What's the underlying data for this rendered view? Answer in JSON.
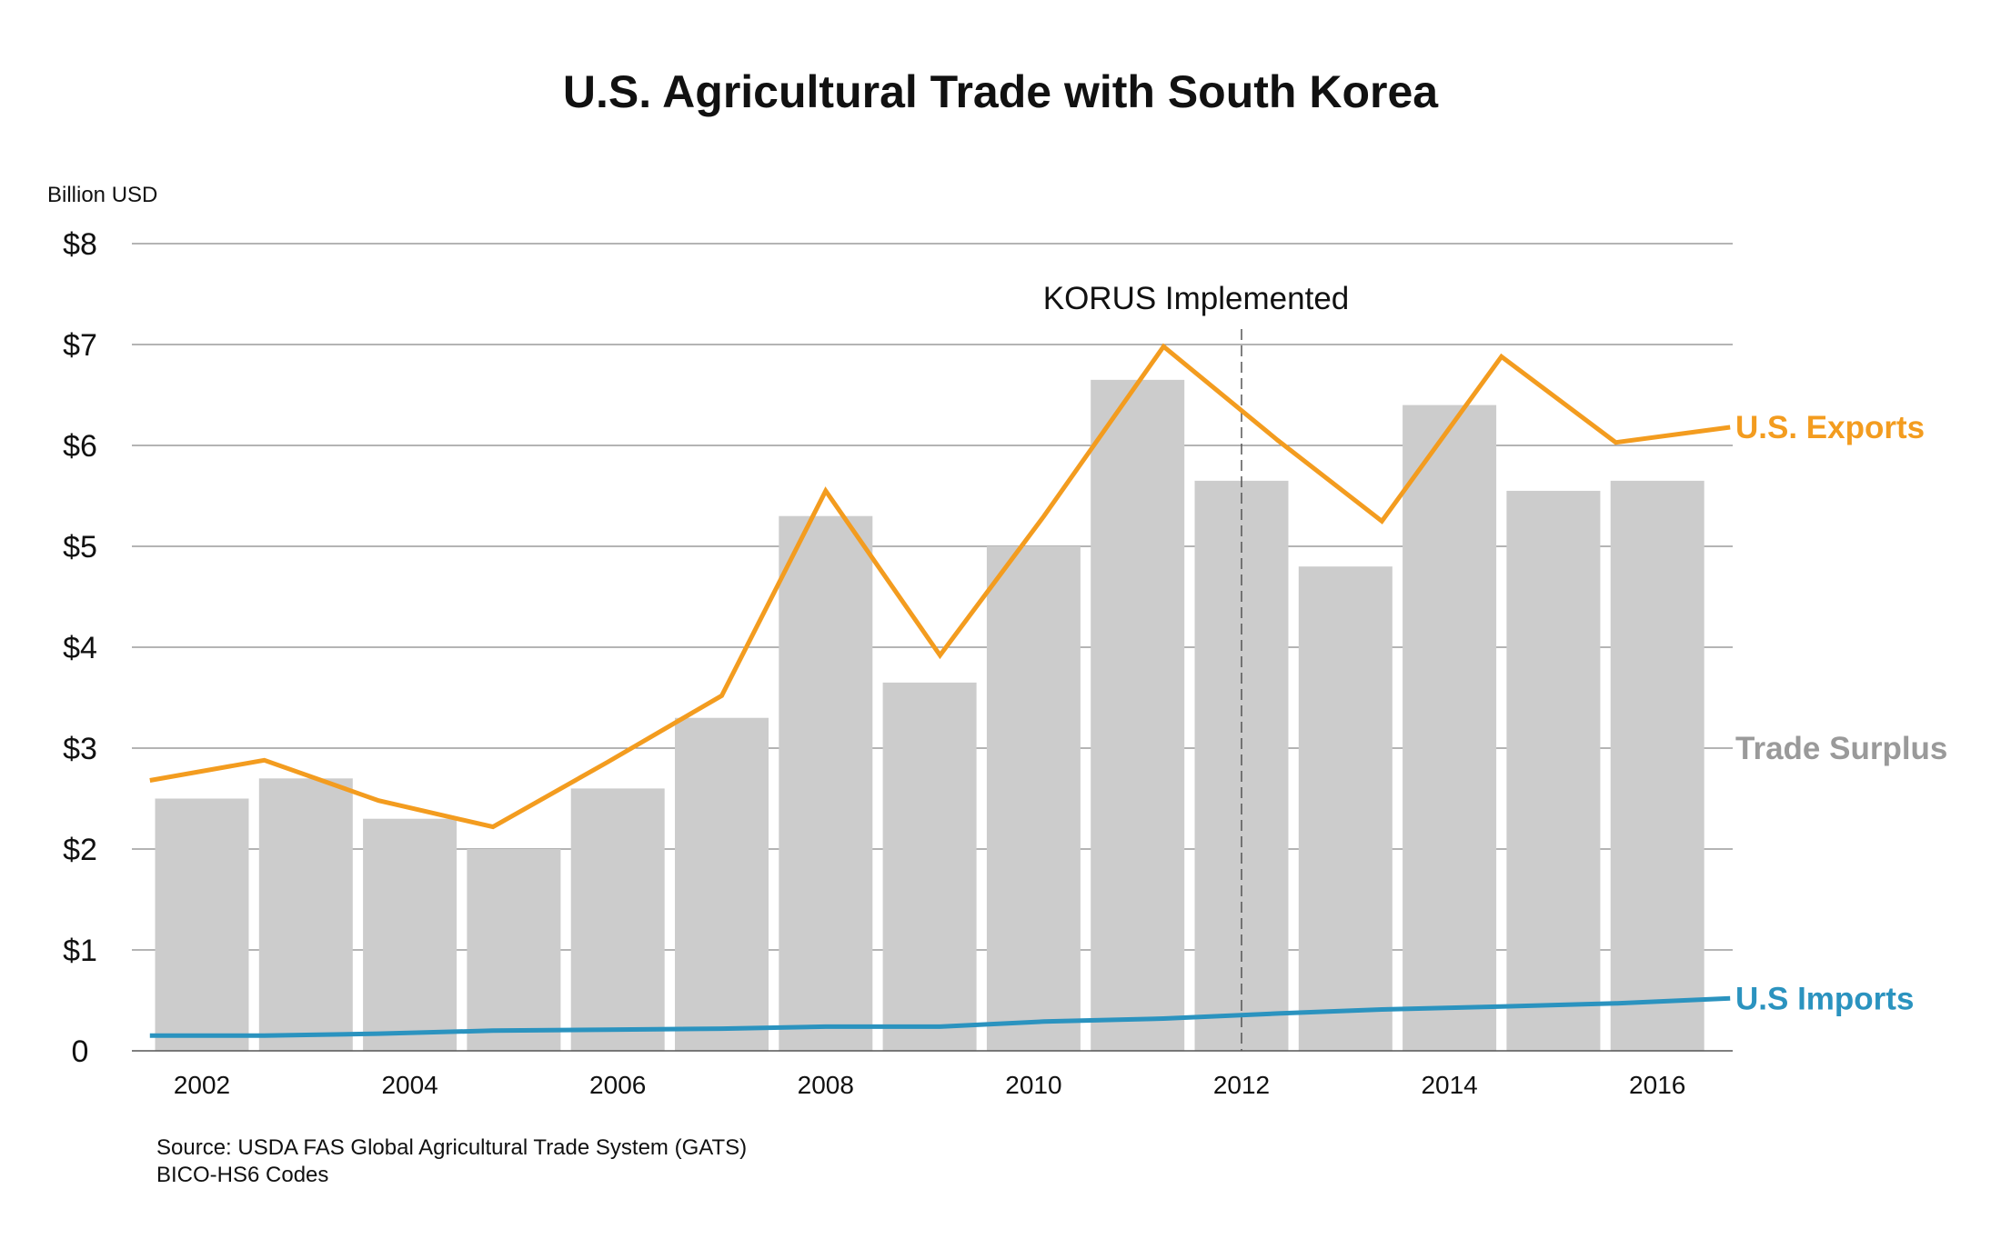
{
  "chart_data": {
    "type": "bar",
    "title": "U.S. Agricultural Trade with South Korea",
    "ylabel": "Billion USD",
    "ylim": [
      0,
      8
    ],
    "y_ticks": [
      "0",
      "$1",
      "$2",
      "$3",
      "$4",
      "$5",
      "$6",
      "$7",
      "$8"
    ],
    "x_tick_labels": [
      "2002",
      "2004",
      "2006",
      "2008",
      "2010",
      "2012",
      "2014",
      "2016"
    ],
    "categories": [
      "2002",
      "2003",
      "2004",
      "2005",
      "2006",
      "2007",
      "2008",
      "2009",
      "2010",
      "2011",
      "2012",
      "2013",
      "2014",
      "2015",
      "2016"
    ],
    "grid": true,
    "series": [
      {
        "name": "Trade Surplus",
        "kind": "bar",
        "color": "#cccccc",
        "values": [
          2.5,
          2.7,
          2.3,
          2.0,
          2.6,
          3.3,
          5.3,
          3.65,
          5.0,
          6.65,
          5.65,
          4.8,
          6.4,
          5.55,
          5.65
        ]
      },
      {
        "name": "U.S. Exports",
        "kind": "line",
        "color": "#f39c1f",
        "x": [
          2001.5,
          2002.6,
          2003.7,
          2004.8,
          2005.9,
          2007.0,
          2008.0,
          2009.1,
          2010.1,
          2011.25,
          2012.35,
          2013.35,
          2014.5,
          2015.6,
          2016.7
        ],
        "values": [
          2.68,
          2.88,
          2.48,
          2.22,
          2.86,
          3.52,
          5.55,
          3.92,
          5.3,
          6.98,
          6.05,
          5.25,
          6.88,
          6.03,
          6.18
        ]
      },
      {
        "name": "U.S Imports",
        "kind": "line",
        "color": "#2b93bf",
        "x": [
          2001.5,
          2002.6,
          2003.7,
          2004.8,
          2005.9,
          2007.0,
          2008.0,
          2009.1,
          2010.1,
          2011.25,
          2012.35,
          2013.35,
          2014.5,
          2015.6,
          2016.7
        ],
        "values": [
          0.15,
          0.15,
          0.17,
          0.2,
          0.21,
          0.22,
          0.24,
          0.24,
          0.29,
          0.32,
          0.37,
          0.41,
          0.44,
          0.47,
          0.52
        ]
      }
    ],
    "annotations": [
      {
        "text": "KORUS Implemented",
        "x": 2012,
        "style": "dashed-vertical-line"
      }
    ],
    "legend": "right, labels at line ends",
    "source_lines": [
      "Source: USDA FAS Global Agricultural Trade System (GATS)",
      "BICO-HS6 Codes"
    ]
  }
}
